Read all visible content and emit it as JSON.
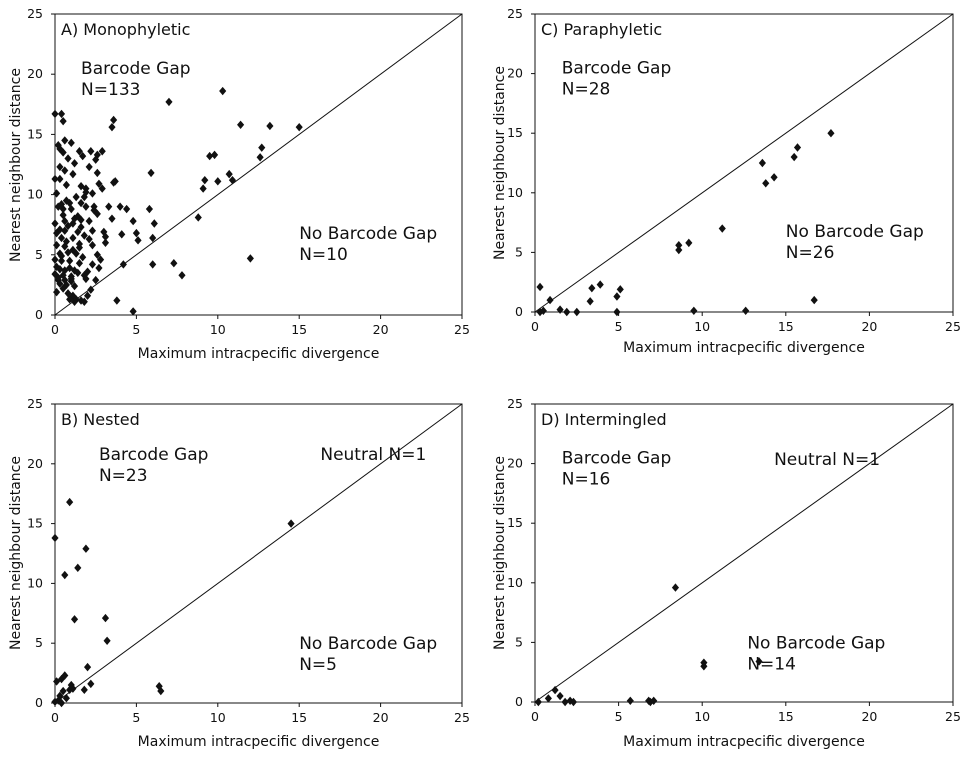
{
  "figure": {
    "background": "#ffffff",
    "ink": "#111111"
  },
  "chart_data": [
    {
      "id": "A",
      "type": "scatter",
      "title": "A) Monophyletic",
      "xlabel": "Maximum intracpecific divergence",
      "ylabel": "Nearest neighbour distance",
      "xlim": [
        0,
        25
      ],
      "ylim": [
        0,
        25
      ],
      "xticks": [
        0,
        5,
        10,
        15,
        20,
        25
      ],
      "yticks": [
        0,
        5,
        10,
        15,
        20,
        25
      ],
      "diagonal": "y = x",
      "annotations": [
        {
          "lines": [
            "Barcode Gap",
            "N=133"
          ],
          "region": "upper-left",
          "x": 1.6,
          "y": 20
        },
        {
          "lines": [
            "No Barcode Gap",
            "N=10"
          ],
          "region": "lower-right",
          "x": 15,
          "y": 6.3
        }
      ],
      "points": [
        [
          0.0,
          16.7
        ],
        [
          0.4,
          16.7
        ],
        [
          0.5,
          16.1
        ],
        [
          0.6,
          14.5
        ],
        [
          1.0,
          14.3
        ],
        [
          0.3,
          13.8
        ],
        [
          0.5,
          13.5
        ],
        [
          1.5,
          13.6
        ],
        [
          1.7,
          13.2
        ],
        [
          2.2,
          13.6
        ],
        [
          2.6,
          13.3
        ],
        [
          2.9,
          13.6
        ],
        [
          2.5,
          12.9
        ],
        [
          0.3,
          12.3
        ],
        [
          0.6,
          12.0
        ],
        [
          1.1,
          11.7
        ],
        [
          2.6,
          11.8
        ],
        [
          0.0,
          11.3
        ],
        [
          0.7,
          10.8
        ],
        [
          1.6,
          10.7
        ],
        [
          2.7,
          10.9
        ],
        [
          3.6,
          11.0
        ],
        [
          1.9,
          10.5
        ],
        [
          0.1,
          10.1
        ],
        [
          1.3,
          9.8
        ],
        [
          1.6,
          9.3
        ],
        [
          0.9,
          9.3
        ],
        [
          0.2,
          9.0
        ],
        [
          0.5,
          8.8
        ],
        [
          1.0,
          8.8
        ],
        [
          1.9,
          9.0
        ],
        [
          2.4,
          9.0
        ],
        [
          0.5,
          8.3
        ],
        [
          1.2,
          8.0
        ],
        [
          1.6,
          7.9
        ],
        [
          2.1,
          7.8
        ],
        [
          2.6,
          8.4
        ],
        [
          3.5,
          8.0
        ],
        [
          1.1,
          7.6
        ],
        [
          0.0,
          7.6
        ],
        [
          0.3,
          7.1
        ],
        [
          0.6,
          7.0
        ],
        [
          1.4,
          6.9
        ],
        [
          2.3,
          7.0
        ],
        [
          3.0,
          6.9
        ],
        [
          0.4,
          6.4
        ],
        [
          1.1,
          6.4
        ],
        [
          2.1,
          6.3
        ],
        [
          3.1,
          6.5
        ],
        [
          0.1,
          5.8
        ],
        [
          0.6,
          5.7
        ],
        [
          1.5,
          5.6
        ],
        [
          2.3,
          5.8
        ],
        [
          0.3,
          5.1
        ],
        [
          0.8,
          5.2
        ],
        [
          1.3,
          5.1
        ],
        [
          2.6,
          5.0
        ],
        [
          0.0,
          4.6
        ],
        [
          0.4,
          4.5
        ],
        [
          0.9,
          4.5
        ],
        [
          1.5,
          4.3
        ],
        [
          0.1,
          4.0
        ],
        [
          0.3,
          3.8
        ],
        [
          0.6,
          3.7
        ],
        [
          0.9,
          3.9
        ],
        [
          1.2,
          3.7
        ],
        [
          2.0,
          3.6
        ],
        [
          0.0,
          3.4
        ],
        [
          0.5,
          3.3
        ],
        [
          1.0,
          3.2
        ],
        [
          1.4,
          3.5
        ],
        [
          1.8,
          3.3
        ],
        [
          0.2,
          2.9
        ],
        [
          0.6,
          2.9
        ],
        [
          1.0,
          2.8
        ],
        [
          0.3,
          2.6
        ],
        [
          0.7,
          2.5
        ],
        [
          1.2,
          2.4
        ],
        [
          0.1,
          1.9
        ],
        [
          0.8,
          1.8
        ],
        [
          1.1,
          1.6
        ],
        [
          1.3,
          1.3
        ],
        [
          1.6,
          1.2
        ],
        [
          1.8,
          1.1
        ],
        [
          1.2,
          1.1
        ],
        [
          0.9,
          1.3
        ],
        [
          0.5,
          2.2
        ],
        [
          1.9,
          3.0
        ],
        [
          2.0,
          1.6
        ],
        [
          2.2,
          2.1
        ],
        [
          0.2,
          14.1
        ],
        [
          0.3,
          11.3
        ],
        [
          0.4,
          9.2
        ],
        [
          0.7,
          9.5
        ],
        [
          0.8,
          7.4
        ],
        [
          1.5,
          5.9
        ],
        [
          1.7,
          4.8
        ],
        [
          2.3,
          4.2
        ],
        [
          1.8,
          6.6
        ],
        [
          2.1,
          12.3
        ],
        [
          2.9,
          10.5
        ],
        [
          2.4,
          8.7
        ],
        [
          3.1,
          6.0
        ],
        [
          2.8,
          4.6
        ],
        [
          0.1,
          6.8
        ],
        [
          1.2,
          12.6
        ],
        [
          1.9,
          10.2
        ],
        [
          1.4,
          8.2
        ],
        [
          0.7,
          6.1
        ],
        [
          2.5,
          2.9
        ],
        [
          0.2,
          3.1
        ],
        [
          1.0,
          3.0
        ],
        [
          0.4,
          4.9
        ],
        [
          1.1,
          5.4
        ],
        [
          2.7,
          3.9
        ],
        [
          0.6,
          7.8
        ],
        [
          1.6,
          7.3
        ],
        [
          0.8,
          13.0
        ],
        [
          1.8,
          9.8
        ],
        [
          2.3,
          10.1
        ],
        [
          3.3,
          9.0
        ],
        [
          3.5,
          15.6
        ],
        [
          3.6,
          16.2
        ],
        [
          3.7,
          11.1
        ],
        [
          4.0,
          9.0
        ],
        [
          4.4,
          8.8
        ],
        [
          4.1,
          6.7
        ],
        [
          4.2,
          4.2
        ],
        [
          4.8,
          7.8
        ],
        [
          5.0,
          6.8
        ],
        [
          5.1,
          6.2
        ],
        [
          5.8,
          8.8
        ],
        [
          5.9,
          11.8
        ],
        [
          6.1,
          7.6
        ],
        [
          6.0,
          6.4
        ],
        [
          3.8,
          1.2
        ],
        [
          4.8,
          0.3
        ],
        [
          6.0,
          4.2
        ],
        [
          7.0,
          17.7
        ],
        [
          7.3,
          4.3
        ],
        [
          7.8,
          3.3
        ],
        [
          8.8,
          8.1
        ],
        [
          9.1,
          10.5
        ],
        [
          9.2,
          11.2
        ],
        [
          9.5,
          13.2
        ],
        [
          9.8,
          13.3
        ],
        [
          10.0,
          11.1
        ],
        [
          10.3,
          18.6
        ],
        [
          10.7,
          11.7
        ],
        [
          10.9,
          11.2
        ],
        [
          11.4,
          15.8
        ],
        [
          12.0,
          4.7
        ],
        [
          12.6,
          13.1
        ],
        [
          12.7,
          13.9
        ],
        [
          13.2,
          15.7
        ],
        [
          15.0,
          15.6
        ]
      ]
    },
    {
      "id": "C",
      "type": "scatter",
      "title": "C) Paraphyletic",
      "xlabel": "Maximum intracpecific divergence",
      "ylabel": "Nearest neighbour distance",
      "xlim": [
        0,
        25
      ],
      "ylim": [
        0,
        25
      ],
      "xticks": [
        0,
        5,
        10,
        15,
        20,
        25
      ],
      "yticks": [
        0,
        5,
        10,
        15,
        20,
        25
      ],
      "diagonal": "y = x",
      "annotations": [
        {
          "lines": [
            "Barcode Gap",
            "N=28"
          ],
          "region": "upper-left",
          "x": 1.6,
          "y": 20
        },
        {
          "lines": [
            "No Barcode Gap",
            "N=26"
          ],
          "region": "lower-right",
          "x": 15,
          "y": 6.3
        }
      ],
      "points": [
        [
          0.3,
          2.1
        ],
        [
          0.3,
          0.0
        ],
        [
          0.5,
          0.1
        ],
        [
          0.9,
          1.0
        ],
        [
          1.5,
          0.2
        ],
        [
          1.9,
          0.0
        ],
        [
          2.5,
          0.0
        ],
        [
          3.3,
          0.9
        ],
        [
          3.4,
          2.0
        ],
        [
          3.9,
          2.3
        ],
        [
          4.9,
          1.3
        ],
        [
          5.1,
          1.9
        ],
        [
          4.9,
          0.0
        ],
        [
          8.6,
          5.6
        ],
        [
          8.6,
          5.2
        ],
        [
          9.2,
          5.8
        ],
        [
          9.5,
          0.1
        ],
        [
          11.2,
          7.0
        ],
        [
          12.6,
          0.1
        ],
        [
          13.6,
          12.5
        ],
        [
          13.8,
          10.8
        ],
        [
          14.3,
          11.3
        ],
        [
          15.5,
          13.0
        ],
        [
          15.7,
          13.8
        ],
        [
          16.7,
          1.0
        ],
        [
          17.7,
          15.0
        ]
      ]
    },
    {
      "id": "B",
      "type": "scatter",
      "title": "B) Nested",
      "xlabel": "Maximum intracpecific divergence",
      "ylabel": "Nearest neighbour distance",
      "xlim": [
        0,
        25
      ],
      "ylim": [
        0,
        25
      ],
      "xticks": [
        0,
        5,
        10,
        15,
        20,
        25
      ],
      "yticks": [
        0,
        5,
        10,
        15,
        20,
        25
      ],
      "diagonal": "y = x",
      "annotations": [
        {
          "lines": [
            "Barcode Gap",
            "N=23"
          ],
          "region": "upper-left",
          "x": 2.7,
          "y": 20.3
        },
        {
          "lines": [
            "No Barcode Gap",
            "N=5"
          ],
          "region": "lower-right",
          "x": 15,
          "y": 4.5
        },
        {
          "lines": [
            "Neutral N=1"
          ],
          "region": "upper-right",
          "x": 16.3,
          "y": 20.3
        }
      ],
      "points": [
        [
          0.0,
          13.8
        ],
        [
          0.6,
          10.7
        ],
        [
          0.9,
          16.8
        ],
        [
          1.2,
          7.0
        ],
        [
          1.4,
          11.3
        ],
        [
          1.9,
          12.9
        ],
        [
          0.1,
          1.8
        ],
        [
          0.4,
          2.0
        ],
        [
          0.6,
          2.3
        ],
        [
          0.9,
          1.1
        ],
        [
          1.1,
          1.2
        ],
        [
          0.2,
          0.2
        ],
        [
          0.4,
          0.0
        ],
        [
          0.3,
          0.6
        ],
        [
          0.0,
          0.1
        ],
        [
          0.7,
          0.4
        ],
        [
          1.8,
          1.1
        ],
        [
          2.0,
          3.0
        ],
        [
          2.2,
          1.6
        ],
        [
          3.1,
          7.1
        ],
        [
          3.2,
          5.2
        ],
        [
          1.0,
          1.5
        ],
        [
          0.5,
          1.0
        ],
        [
          6.4,
          1.4
        ],
        [
          6.5,
          1.0
        ],
        [
          14.5,
          15.0
        ]
      ]
    },
    {
      "id": "D",
      "type": "scatter",
      "title": "D) Intermingled",
      "xlabel": "Maximum intracpecific divergence",
      "ylabel": "Nearest neighbour distance",
      "xlim": [
        0,
        25
      ],
      "ylim": [
        0,
        25
      ],
      "xticks": [
        0,
        5,
        10,
        15,
        20,
        25
      ],
      "yticks": [
        0,
        5,
        10,
        15,
        20,
        25
      ],
      "diagonal": "y = x",
      "annotations": [
        {
          "lines": [
            "Barcode Gap",
            "N=16"
          ],
          "region": "upper-left",
          "x": 1.6,
          "y": 20
        },
        {
          "lines": [
            "No Barcode Gap",
            "N=14"
          ],
          "region": "lower-right",
          "x": 12.7,
          "y": 4.5
        },
        {
          "lines": [
            "Neutral N=1"
          ],
          "region": "upper-right",
          "x": 14.3,
          "y": 19.9
        }
      ],
      "points": [
        [
          0.2,
          0.0
        ],
        [
          0.8,
          0.3
        ],
        [
          1.2,
          1.0
        ],
        [
          1.5,
          0.5
        ],
        [
          1.8,
          0.0
        ],
        [
          2.1,
          0.1
        ],
        [
          2.3,
          0.0
        ],
        [
          5.7,
          0.1
        ],
        [
          6.8,
          0.1
        ],
        [
          6.9,
          0.0
        ],
        [
          7.1,
          0.1
        ],
        [
          8.4,
          9.6
        ],
        [
          10.1,
          3.3
        ],
        [
          10.1,
          3.0
        ],
        [
          13.4,
          3.4
        ]
      ]
    }
  ]
}
